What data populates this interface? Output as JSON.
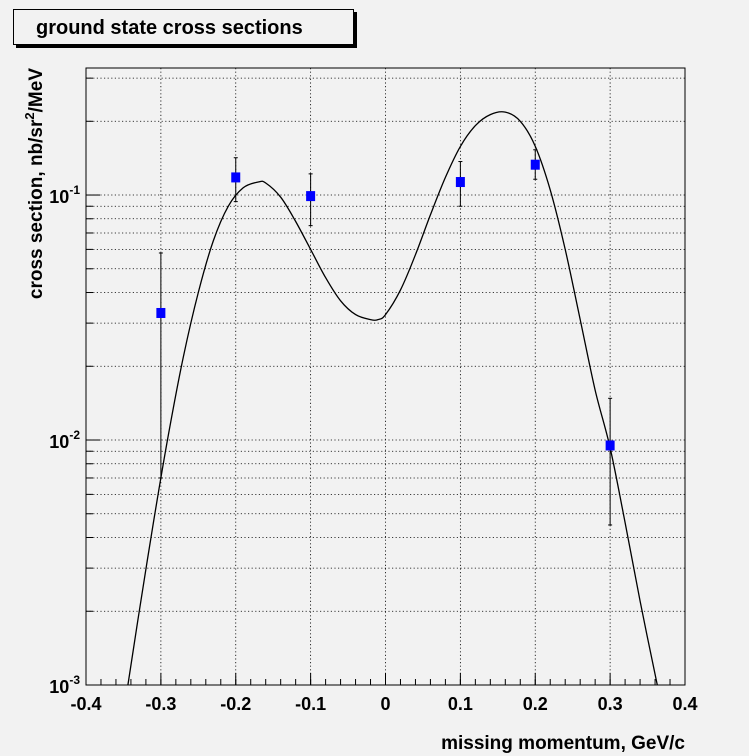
{
  "chart_data": {
    "type": "scatter",
    "title": "ground state cross sections",
    "xlabel": "missing momentum, GeV/c",
    "ylabel": "cross section, nb/sr",
    "ylabel_sup": "2",
    "ylabel_tail": "/MeV",
    "xlim": [
      -0.4,
      0.4
    ],
    "ylim": [
      0.001,
      0.33
    ],
    "yscale": "log",
    "grid": true,
    "x_ticks": [
      "-0.4",
      "-0.3",
      "-0.2",
      "-0.1",
      "0",
      "0.1",
      "0.2",
      "0.3",
      "0.4"
    ],
    "y_ticks": [
      {
        "base": "10",
        "exp": "-3",
        "value": 0.001
      },
      {
        "base": "10",
        "exp": "-2",
        "value": 0.01
      },
      {
        "base": "10",
        "exp": "-1",
        "value": 0.1
      }
    ],
    "series": [
      {
        "kind": "points",
        "color": "#0000ff",
        "x": [
          -0.3,
          -0.2,
          -0.1,
          0.1,
          0.2,
          0.3
        ],
        "y": [
          0.033,
          0.118,
          0.099,
          0.113,
          0.133,
          0.0095
        ],
        "y_low": [
          0.007,
          0.094,
          0.075,
          0.09,
          0.116,
          0.0045
        ],
        "y_high": [
          0.058,
          0.142,
          0.122,
          0.137,
          0.153,
          0.0148
        ]
      },
      {
        "kind": "curve",
        "color": "#000000",
        "x": [
          -0.344,
          -0.33,
          -0.31,
          -0.29,
          -0.27,
          -0.25,
          -0.23,
          -0.21,
          -0.19,
          -0.17,
          -0.16,
          -0.14,
          -0.12,
          -0.1,
          -0.08,
          -0.06,
          -0.04,
          -0.02,
          -0.01,
          0.0,
          0.02,
          0.04,
          0.06,
          0.08,
          0.1,
          0.12,
          0.14,
          0.16,
          0.18,
          0.2,
          0.22,
          0.24,
          0.26,
          0.28,
          0.3,
          0.32,
          0.34,
          0.363
        ],
        "y": [
          0.001,
          0.0019,
          0.0046,
          0.0105,
          0.0218,
          0.04,
          0.065,
          0.09,
          0.107,
          0.113,
          0.112,
          0.098,
          0.078,
          0.06,
          0.046,
          0.037,
          0.0325,
          0.031,
          0.031,
          0.0325,
          0.041,
          0.057,
          0.083,
          0.118,
          0.158,
          0.192,
          0.213,
          0.218,
          0.2,
          0.158,
          0.105,
          0.06,
          0.031,
          0.016,
          0.0093,
          0.0046,
          0.0022,
          0.001
        ]
      }
    ]
  }
}
